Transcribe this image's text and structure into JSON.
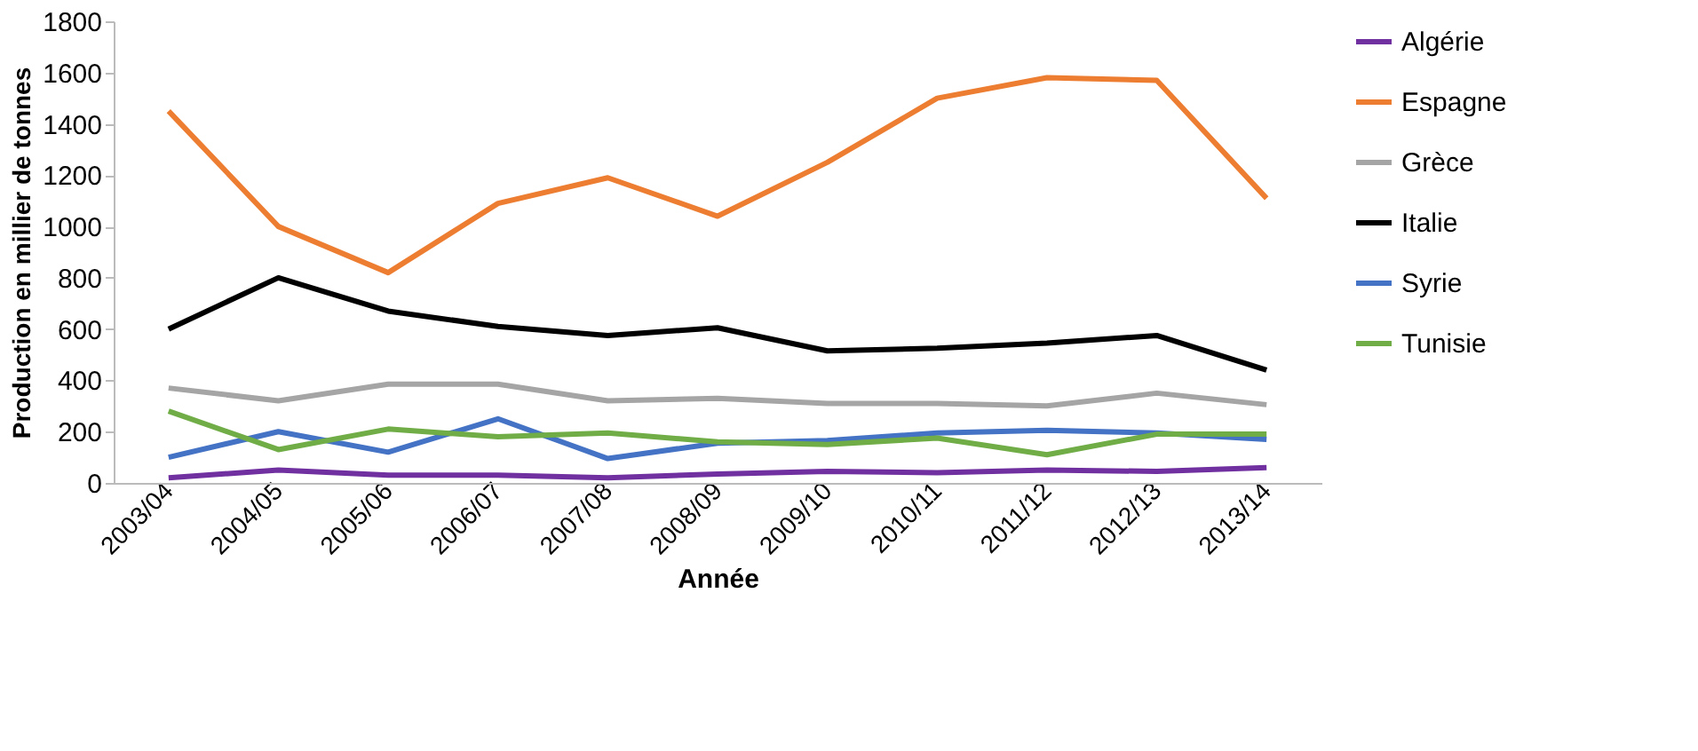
{
  "chart_data": {
    "type": "line",
    "xlabel": "Année",
    "ylabel": "Production en millier de tonnes",
    "categories": [
      "2003/04",
      "2004/05",
      "2005/06",
      "2006/07",
      "2007/08",
      "2008/09",
      "2009/10",
      "2010/11",
      "2011/12",
      "2012/13",
      "2013/14"
    ],
    "series": [
      {
        "name": "Algérie",
        "color": "#7030a0",
        "values": [
          20,
          50,
          30,
          30,
          20,
          35,
          45,
          40,
          50,
          45,
          60
        ]
      },
      {
        "name": "Espagne",
        "color": "#ed7d31",
        "values": [
          1450,
          1000,
          820,
          1090,
          1190,
          1040,
          1250,
          1500,
          1580,
          1570,
          1110
        ]
      },
      {
        "name": "Grèce",
        "color": "#a5a5a5",
        "values": [
          370,
          320,
          385,
          385,
          320,
          330,
          310,
          310,
          300,
          350,
          305
        ]
      },
      {
        "name": "Italie",
        "color": "#000000",
        "values": [
          600,
          800,
          670,
          610,
          575,
          605,
          515,
          525,
          545,
          575,
          440
        ]
      },
      {
        "name": "Syrie",
        "color": "#4472c4",
        "values": [
          100,
          200,
          120,
          250,
          95,
          155,
          165,
          195,
          205,
          195,
          170
        ]
      },
      {
        "name": "Tunisie",
        "color": "#70ad47",
        "values": [
          280,
          130,
          210,
          180,
          195,
          160,
          150,
          175,
          110,
          190,
          190
        ]
      }
    ],
    "ylim": [
      0,
      1800
    ],
    "yticks": [
      0,
      200,
      400,
      600,
      800,
      1000,
      1200,
      1400,
      1600,
      1800
    ],
    "grid": false,
    "legend": "right",
    "marker": "none",
    "line_style": "solid"
  }
}
